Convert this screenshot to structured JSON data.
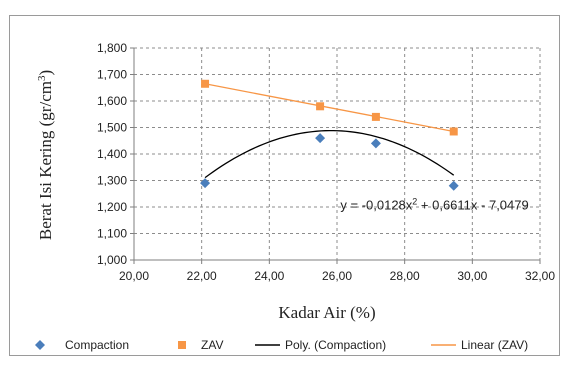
{
  "chart_data": {
    "type": "scatter",
    "title": "",
    "xlabel": "Kadar Air (%)",
    "ylabel_main": "Berat Isi Kering (gr/cm",
    "ylabel_sup": "3",
    "ylabel_close": ")",
    "xlim": [
      20,
      32
    ],
    "ylim": [
      1.0,
      1.8
    ],
    "x_ticks": [
      20,
      22,
      24,
      26,
      28,
      30,
      32
    ],
    "y_ticks": [
      1.0,
      1.1,
      1.2,
      1.3,
      1.4,
      1.5,
      1.6,
      1.7,
      1.8
    ],
    "x_tick_labels": [
      "20,00",
      "22,00",
      "24,00",
      "26,00",
      "28,00",
      "30,00",
      "32,00"
    ],
    "y_tick_labels": [
      "1,000",
      "1,100",
      "1,200",
      "1,300",
      "1,400",
      "1,500",
      "1,600",
      "1,700",
      "1,800"
    ],
    "grid": true,
    "legend_position": "bottom",
    "series": [
      {
        "name": "Compaction",
        "marker": "diamond",
        "color": "#4a7ebb",
        "points": [
          [
            22.1,
            1.29
          ],
          [
            25.5,
            1.46
          ],
          [
            27.15,
            1.44
          ],
          [
            29.45,
            1.28
          ]
        ]
      },
      {
        "name": "ZAV",
        "marker": "square",
        "color": "#f79646",
        "points": [
          [
            22.1,
            1.665
          ],
          [
            25.5,
            1.58
          ],
          [
            27.15,
            1.54
          ],
          [
            29.45,
            1.485
          ]
        ]
      }
    ],
    "trendlines": [
      {
        "name": "Poly. (Compaction)",
        "type": "polynomial",
        "color": "#000000",
        "coefficients": [
          -0.0128,
          0.6611,
          -7.0479
        ],
        "x_range": [
          22.1,
          29.45
        ]
      },
      {
        "name": "Linear (ZAV)",
        "type": "linear",
        "color": "#f79646",
        "points": [
          [
            22.1,
            1.665
          ],
          [
            29.45,
            1.485
          ]
        ]
      }
    ],
    "annotations": [
      {
        "text_pre": "y = -0,0128x",
        "sup": "2",
        "text_post": " + 0,6611x - 7,0479",
        "x": 26.1,
        "y": 1.19
      }
    ]
  }
}
